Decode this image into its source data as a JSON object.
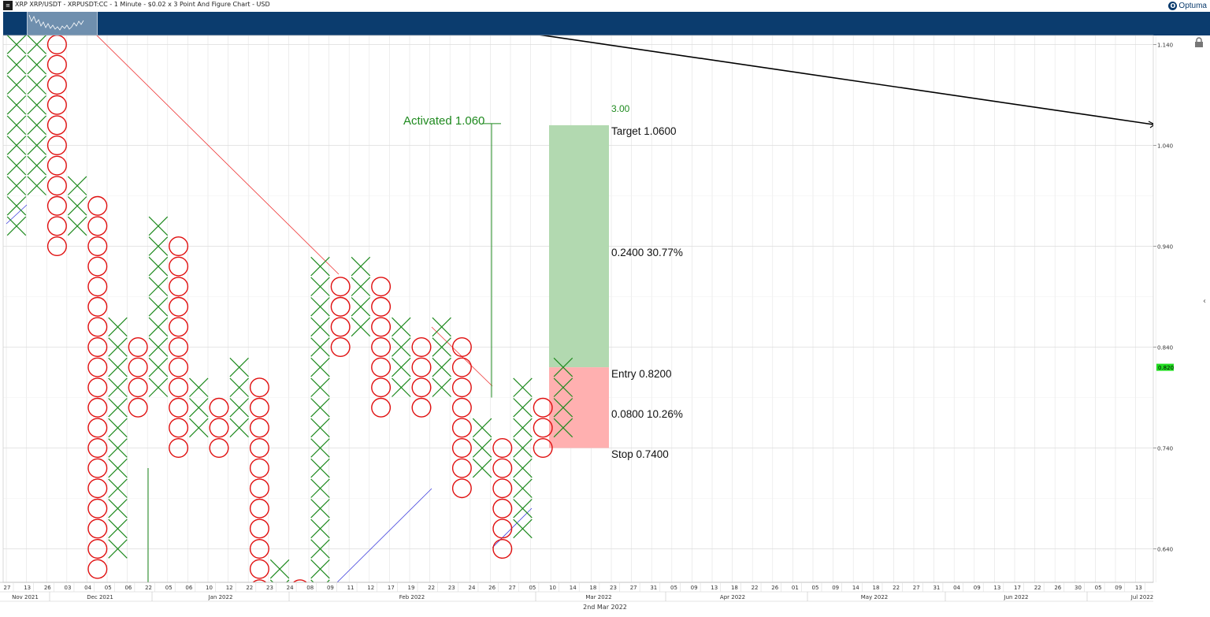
{
  "header": {
    "title": "XRP XRP/USDT - XRPUSDT:CC - 1 Minute - $0.02 x 3 Point And Figure Chart - USD",
    "brand": "Optuma"
  },
  "footer": {
    "date": "2nd Mar 2022"
  },
  "colors": {
    "x_mark": "#1f8a1f",
    "o_mark": "#e01010",
    "target_zone": "#b2d9b0",
    "stop_zone": "#ffb0b0",
    "navigator": "#0b3c6e",
    "trendline_red": "#ee3333",
    "trendline_blue": "#4040dd",
    "price_marker": "#22dd22"
  },
  "chart_data": {
    "type": "point_and_figure",
    "box_size": 0.02,
    "reversal": 3,
    "ylim": [
      0.57,
      1.16
    ],
    "y_ticks": [
      1.14,
      1.04,
      0.94,
      0.84,
      0.74,
      0.64
    ],
    "y_tick_labels": [
      "1.140",
      "1.040",
      "0.940",
      "0.840",
      "0.740",
      "0.640"
    ],
    "last_price": "0.820",
    "date_ticks": [
      "27",
      "13",
      "26",
      "03",
      "04",
      "05",
      "06",
      "22",
      "05",
      "06",
      "10",
      "12",
      "22",
      "23",
      "24",
      "08",
      "09",
      "11",
      "12",
      "17",
      "19",
      "22",
      "23",
      "24",
      "26",
      "27",
      "05",
      "10",
      "14",
      "18",
      "23",
      "27",
      "31",
      "05",
      "09",
      "13",
      "18",
      "22",
      "26",
      "01",
      "05",
      "09",
      "14",
      "18",
      "22",
      "27",
      "31",
      "04",
      "09",
      "13",
      "17",
      "22",
      "26",
      "30",
      "05",
      "09",
      "13"
    ],
    "month_ticks": [
      "Nov 2021",
      "Dec 2021",
      "Jan 2022",
      "Feb 2022",
      "Mar 2022",
      "Apr 2022",
      "May 2022",
      "Jun 2022",
      "Jul 2022"
    ],
    "columns": [
      {
        "type": "X",
        "low": 0.96,
        "high": 1.16
      },
      {
        "type": "X",
        "low": 1.0,
        "high": 1.16
      },
      {
        "type": "O",
        "low": 0.94,
        "high": 1.16
      },
      {
        "type": "X",
        "low": 0.96,
        "high": 1.0
      },
      {
        "type": "O",
        "low": 0.62,
        "high": 0.98
      },
      {
        "type": "X",
        "low": 0.64,
        "high": 0.86
      },
      {
        "type": "O",
        "low": 0.78,
        "high": 0.84
      },
      {
        "type": "X",
        "low": 0.8,
        "high": 0.96
      },
      {
        "type": "O",
        "low": 0.74,
        "high": 0.94
      },
      {
        "type": "X",
        "low": 0.76,
        "high": 0.8
      },
      {
        "type": "O",
        "low": 0.74,
        "high": 0.78
      },
      {
        "type": "X",
        "low": 0.76,
        "high": 0.82
      },
      {
        "type": "O",
        "low": 0.58,
        "high": 0.8
      },
      {
        "type": "X",
        "low": 0.58,
        "high": 0.62
      },
      {
        "type": "O",
        "low": 0.58,
        "high": 0.6
      },
      {
        "type": "X",
        "low": 0.58,
        "high": 0.92
      },
      {
        "type": "O",
        "low": 0.84,
        "high": 0.9
      },
      {
        "type": "X",
        "low": 0.86,
        "high": 0.92
      },
      {
        "type": "O",
        "low": 0.78,
        "high": 0.9
      },
      {
        "type": "X",
        "low": 0.8,
        "high": 0.86
      },
      {
        "type": "O",
        "low": 0.78,
        "high": 0.84
      },
      {
        "type": "X",
        "low": 0.8,
        "high": 0.86
      },
      {
        "type": "O",
        "low": 0.7,
        "high": 0.84
      },
      {
        "type": "X",
        "low": 0.72,
        "high": 0.76
      },
      {
        "type": "O",
        "low": 0.64,
        "high": 0.74
      },
      {
        "type": "X",
        "low": 0.66,
        "high": 0.8
      },
      {
        "type": "O",
        "low": 0.74,
        "high": 0.78
      },
      {
        "type": "X",
        "low": 0.76,
        "high": 0.82
      }
    ],
    "trade": {
      "activated_label": "Activated 1.060",
      "ratio_label": "3.00",
      "target_label": "Target  1.0600",
      "reward_label": "0.2400  30.77%",
      "entry_label": "Entry  0.8200",
      "risk_label": "0.0800  10.26%",
      "stop_label": "Stop  0.7400",
      "target": 1.06,
      "entry": 0.82,
      "stop": 0.74
    }
  }
}
